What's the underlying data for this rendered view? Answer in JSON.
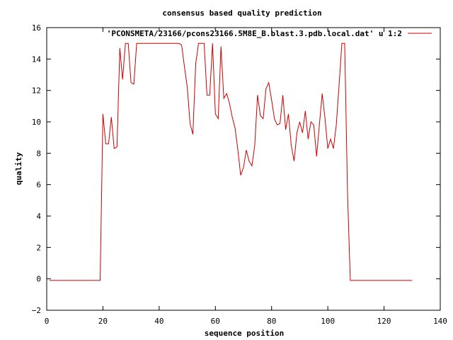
{
  "chart_data": {
    "type": "line",
    "title": "consensus based quality prediction",
    "xlabel": "sequence position",
    "ylabel": "quality",
    "xlim": [
      0,
      140
    ],
    "ylim": [
      -2,
      16
    ],
    "xticks": [
      0,
      20,
      40,
      60,
      80,
      100,
      120,
      140
    ],
    "yticks": [
      -2,
      0,
      2,
      4,
      6,
      8,
      10,
      12,
      14,
      16
    ],
    "grid": false,
    "legend_position": "top-right",
    "series": [
      {
        "name": "'PCONSMETA/23166/pcons23166.5M8E_B.blast.3.pdb.local.dat' u 1:2",
        "color": "#cc0000",
        "x": [
          1,
          2,
          3,
          4,
          5,
          6,
          7,
          8,
          9,
          10,
          11,
          12,
          13,
          14,
          15,
          16,
          17,
          18,
          19,
          20,
          21,
          22,
          23,
          24,
          25,
          26,
          27,
          28,
          29,
          30,
          31,
          32,
          33,
          34,
          35,
          36,
          37,
          38,
          39,
          40,
          41,
          42,
          43,
          44,
          45,
          46,
          47,
          48,
          49,
          50,
          51,
          52,
          53,
          54,
          55,
          56,
          57,
          58,
          59,
          60,
          61,
          62,
          63,
          64,
          65,
          66,
          67,
          68,
          69,
          70,
          71,
          72,
          73,
          74,
          75,
          76,
          77,
          78,
          79,
          80,
          81,
          82,
          83,
          84,
          85,
          86,
          87,
          88,
          89,
          90,
          91,
          92,
          93,
          94,
          95,
          96,
          97,
          98,
          99,
          100,
          101,
          102,
          103,
          104,
          105,
          106,
          107,
          108,
          109,
          110,
          111,
          112,
          113,
          114,
          115,
          116,
          117,
          118,
          119,
          120,
          121,
          122,
          123,
          124,
          125,
          126,
          127,
          128,
          129,
          130
        ],
        "values": [
          -0.1,
          -0.1,
          -0.1,
          -0.1,
          -0.1,
          -0.1,
          -0.1,
          -0.1,
          -0.1,
          -0.1,
          -0.1,
          -0.1,
          -0.1,
          -0.1,
          -0.1,
          -0.1,
          -0.1,
          -0.1,
          -0.1,
          10.5,
          8.6,
          8.6,
          10.3,
          8.3,
          8.4,
          14.7,
          12.7,
          15,
          15,
          12.5,
          12.4,
          15,
          15,
          15,
          15,
          15,
          15,
          15,
          15,
          15,
          15,
          15,
          15,
          15,
          15,
          15,
          15,
          14.9,
          13.5,
          12.2,
          9.9,
          9.2,
          13.7,
          15,
          15,
          15,
          11.7,
          11.7,
          15,
          10.5,
          10.2,
          14.8,
          11.5,
          11.8,
          11.2,
          10.3,
          9.6,
          8.2,
          6.6,
          7.1,
          8.2,
          7.5,
          7.2,
          8.5,
          11.7,
          10.4,
          10.2,
          12.1,
          12.5,
          11.4,
          10.2,
          9.8,
          9.9,
          11.7,
          9.5,
          10.5,
          8.5,
          7.5,
          9.3,
          10,
          9.3,
          10.7,
          8.9,
          10,
          9.8,
          7.8,
          9.8,
          11.8,
          10.2,
          8.3,
          8.9,
          8.3,
          9.8,
          12.3,
          15,
          15,
          5.6,
          -0.1,
          -0.1,
          -0.1,
          -0.1,
          -0.1,
          -0.1,
          -0.1,
          -0.1,
          -0.1,
          -0.1,
          -0.1,
          -0.1,
          -0.1,
          -0.1,
          -0.1,
          -0.1,
          -0.1,
          -0.1,
          -0.1,
          -0.1,
          -0.1,
          -0.1,
          -0.1
        ]
      }
    ]
  }
}
